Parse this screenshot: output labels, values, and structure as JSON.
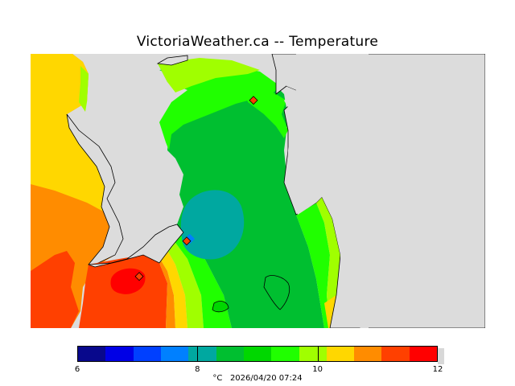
{
  "title": "VictoriaWeather.ca -- Temperature",
  "legend": {
    "colors": [
      "#08088c",
      "#0000e6",
      "#0040ff",
      "#0080ff",
      "#00a8a0",
      "#00bf30",
      "#00d700",
      "#20ff00",
      "#a0ff00",
      "#ffd700",
      "#ff8c00",
      "#ff4000",
      "#ff0000"
    ],
    "ticks": [
      {
        "label": "6",
        "value": 6
      },
      {
        "label": "8",
        "value": 8
      },
      {
        "label": "10",
        "value": 10
      },
      {
        "label": "12",
        "value": 12
      }
    ],
    "min": 6,
    "max": 12,
    "units": "°C",
    "timestamp": "2026/04/20 07:24"
  }
}
